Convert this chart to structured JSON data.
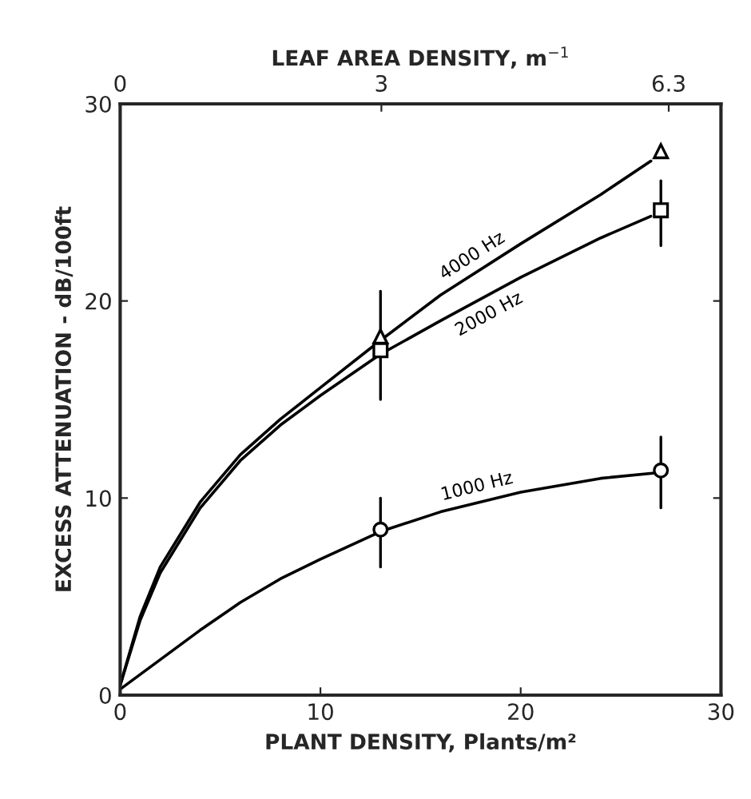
{
  "chart_data": {
    "type": "line",
    "xlabel": "PLANT DENSITY, Plants/m²",
    "ylabel": "EXCESS ATTENUATION - dB/100ft",
    "x2label": "LEAF AREA DENSITY, m$^{−1}$",
    "xlim": [
      0,
      30
    ],
    "xticks": [
      0,
      10,
      20,
      30
    ],
    "ylim": [
      0,
      30
    ],
    "yticks": [
      0,
      10,
      20,
      30
    ],
    "x2lim": [
      0,
      6.9
    ],
    "x2ticks": [
      0,
      3,
      6.3
    ],
    "grid": false,
    "legend": false,
    "series": [
      {
        "name": "4000 Hz",
        "color": "#000000",
        "marker": "none",
        "x": [
          0,
          1,
          2,
          4,
          6,
          8,
          10,
          13,
          16,
          20,
          24,
          26.5
        ],
        "values": [
          0.5,
          4,
          6.5,
          9.8,
          12.2,
          14,
          15.6,
          18,
          20.3,
          22.9,
          25.4,
          27.1
        ]
      },
      {
        "name": "2000 Hz",
        "color": "#000000",
        "marker": "none",
        "x": [
          0,
          1,
          2,
          4,
          6,
          8,
          10,
          13,
          16,
          20,
          24,
          26.5
        ],
        "values": [
          0.5,
          3.8,
          6.2,
          9.5,
          11.9,
          13.7,
          15.2,
          17.3,
          19,
          21.2,
          23.2,
          24.3
        ]
      },
      {
        "name": "1000 Hz",
        "color": "#000000",
        "marker": "none",
        "x": [
          0,
          2,
          4,
          6,
          8,
          10,
          13,
          16,
          20,
          24,
          27
        ],
        "values": [
          0.3,
          1.8,
          3.3,
          4.7,
          5.9,
          6.9,
          8.3,
          9.3,
          10.3,
          11,
          11.3
        ]
      },
      {
        "type": "scatter",
        "color": "#000000",
        "marker": "triangle",
        "x": [
          13,
          27
        ],
        "values": [
          18.2,
          27.6
        ]
      },
      {
        "type": "scatter",
        "color": "#000000",
        "marker": "square",
        "x": [
          13,
          27
        ],
        "values": [
          17.5,
          24.6
        ],
        "errors": [
          [
            15,
            20.5
          ],
          [
            22.8,
            26.1
          ]
        ]
      },
      {
        "type": "scatter",
        "color": "#000000",
        "marker": "circle",
        "x": [
          13,
          27
        ],
        "values": [
          8.4,
          11.4
        ],
        "errors": [
          [
            6.5,
            10
          ],
          [
            9.5,
            13.1
          ]
        ]
      }
    ]
  }
}
